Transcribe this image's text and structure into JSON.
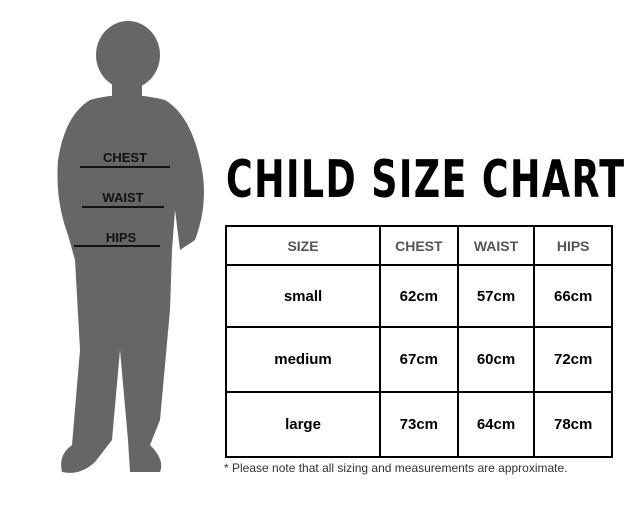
{
  "title": "CHILD SIZE CHART",
  "silhouette_labels": {
    "chest": "CHEST",
    "waist": "WAIST",
    "hips": "HIPS"
  },
  "table": {
    "headers": [
      "SIZE",
      "CHEST",
      "WAIST",
      "HIPS"
    ],
    "rows": [
      [
        "small",
        "62cm",
        "57cm",
        "66cm"
      ],
      [
        "medium",
        "67cm",
        "60cm",
        "72cm"
      ],
      [
        "large",
        "73cm",
        "64cm",
        "78cm"
      ]
    ]
  },
  "note": "* Please note that all sizing and measurements are approximate.",
  "colors": {
    "silhouette": "#666666",
    "header_text": "#555555"
  }
}
